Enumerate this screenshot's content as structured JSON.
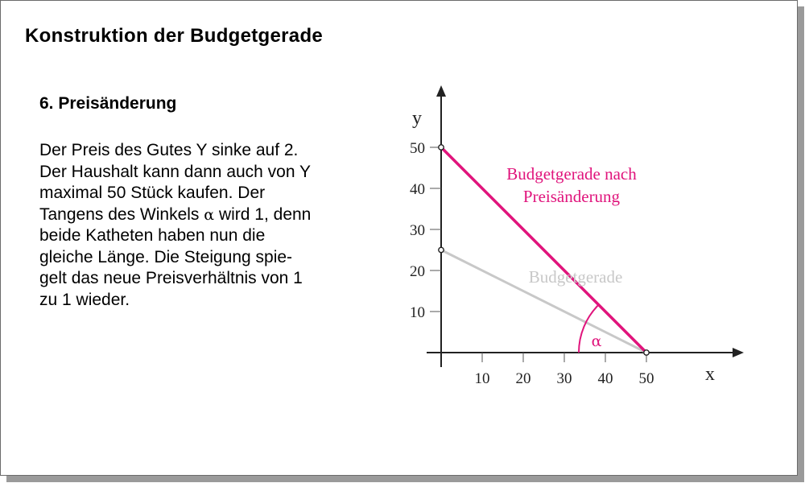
{
  "slide": {
    "title": "Konstruktion der Budgetgerade",
    "section_heading": "6. Preisänderung",
    "paragraph_lines": [
      "Der Preis des Gutes Y sinke auf 2.",
      "Der Haushalt kann dann auch von Y",
      "maximal 50 Stück kaufen. Der",
      [
        "Tangens des Winkels ",
        "α",
        " wird 1, denn"
      ],
      "beide Katheten haben nun die",
      "gleiche Länge. Die Steigung spie-",
      "gelt das neue Preisverhältnis von 1",
      "zu 1 wieder."
    ]
  },
  "chart_data": {
    "type": "line",
    "xlabel": "x",
    "ylabel": "y",
    "x_ticks": [
      10,
      20,
      30,
      40,
      50
    ],
    "y_ticks": [
      10,
      20,
      30,
      40,
      50
    ],
    "xlim": [
      0,
      50
    ],
    "ylim": [
      0,
      50
    ],
    "series": [
      {
        "name": "Budgetgerade nach Preisänderung",
        "label_lines": [
          "Budgetgerade nach",
          "Preisänderung"
        ],
        "color": "#e0147c",
        "points": [
          [
            0,
            50
          ],
          [
            50,
            0
          ]
        ]
      },
      {
        "name": "Budgetgerade",
        "label_lines": [
          "Budgetgerade"
        ],
        "color": "#c8c8c8",
        "points": [
          [
            0,
            25
          ],
          [
            50,
            0
          ]
        ]
      }
    ],
    "angle_label": "α",
    "angle_color": "#e0147c"
  }
}
